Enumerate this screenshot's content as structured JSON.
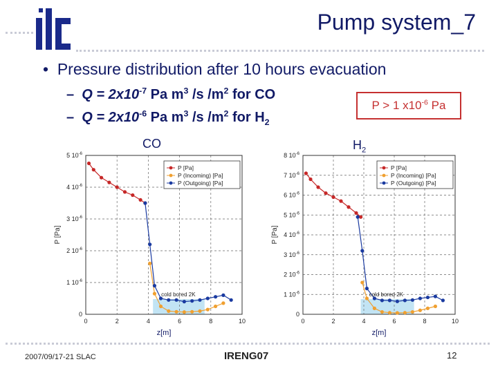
{
  "header": {
    "logo_text": "ilc",
    "title": "Pump system_7"
  },
  "bullet": {
    "text": "Pressure distribution after 10 hours evacuation"
  },
  "subbullets": [
    {
      "prefix": "Q = 2x10",
      "exp": "-7",
      "mid": " Pa m",
      "exp2": "3",
      "mid2": " /s /m",
      "exp3": "2",
      "suffix": " for CO",
      "gas_sub": ""
    },
    {
      "prefix": "Q = 2x10",
      "exp": "-6",
      "mid": " Pa m",
      "exp2": "3",
      "mid2": " /s /m",
      "exp3": "2",
      "suffix": " for H",
      "gas_sub": "2"
    }
  ],
  "callout": {
    "prefix": "P > 1 x10",
    "exp": "-6",
    "suffix": " Pa"
  },
  "colors": {
    "p_total": "#c62828",
    "p_incoming": "#f0a030",
    "p_outgoing": "#1a3aa0",
    "highlight": "#a8d8f0",
    "accent_red": "#c53030"
  },
  "chart_data": [
    {
      "type": "line",
      "title": "CO",
      "xlabel": "z[m]",
      "ylabel": "P [Pa]",
      "xlim": [
        0,
        10
      ],
      "ylim": [
        0,
        5e-06
      ],
      "x_ticks": [
        "0",
        "2",
        "4",
        "6",
        "8",
        "10"
      ],
      "y_ticks": [
        "0",
        "1 10-6",
        "2 10-6",
        "3 10-6",
        "4 10-6",
        "5 10-6"
      ],
      "legend": [
        "P [Pa]",
        "P (Incoming) [Pa]",
        "P (Outgoing) [Pa]"
      ],
      "legend_position": "top-right",
      "annotation": "cold bored",
      "annotation2": "2K",
      "highlight_x": [
        4.3,
        7.6
      ],
      "series": [
        {
          "name": "P [Pa]",
          "x": [
            0.2,
            0.5,
            1.0,
            1.5,
            2.0,
            2.5,
            3.0,
            3.5,
            3.8
          ],
          "y": [
            4.75e-06,
            4.55e-06,
            4.3e-06,
            4.15e-06,
            4e-06,
            3.85e-06,
            3.75e-06,
            3.6e-06,
            3.5e-06
          ]
        },
        {
          "name": "P (Incoming) [Pa]",
          "x": [
            4.1,
            4.4,
            4.8,
            5.3,
            5.8,
            6.3,
            6.8,
            7.3,
            7.8,
            8.3,
            8.8
          ],
          "y": [
            1.6e-06,
            6.5e-07,
            2.5e-07,
            1e-07,
            8e-08,
            7e-08,
            8e-08,
            1e-07,
            1.5e-07,
            2.5e-07,
            3.5e-07
          ]
        },
        {
          "name": "P (Outgoing) [Pa]",
          "x": [
            3.8,
            4.1,
            4.4,
            4.8,
            5.3,
            5.8,
            6.3,
            6.8,
            7.3,
            7.8,
            8.3,
            8.8,
            9.3
          ],
          "y": [
            3.5e-06,
            2.2e-06,
            9e-07,
            5e-07,
            4.5e-07,
            4.5e-07,
            4e-07,
            4.2e-07,
            4.5e-07,
            5e-07,
            5.5e-07,
            6e-07,
            4.5e-07
          ]
        }
      ]
    },
    {
      "type": "line",
      "title": "H2",
      "title_base": "H",
      "title_sub": "2",
      "xlabel": "z[m]",
      "ylabel": "P [Pa]",
      "xlim": [
        0,
        10
      ],
      "ylim": [
        0,
        8e-06
      ],
      "x_ticks": [
        "0",
        "2",
        "4",
        "6",
        "8",
        "10"
      ],
      "y_ticks": [
        "0",
        "1 10-6",
        "2 10-6",
        "3 10-6",
        "4 10-6",
        "5 10-6",
        "6 10-6",
        "7 10-6",
        "8 10-6"
      ],
      "legend": [
        "P [Pa]",
        "P (Incoming) [Pa]",
        "P (Outgoing) [Pa]"
      ],
      "legend_position": "top-right",
      "annotation": "cold bored",
      "annotation2": "2K",
      "highlight_x": [
        3.8,
        7.3
      ],
      "series": [
        {
          "name": "P [Pa]",
          "x": [
            0.2,
            0.5,
            1.0,
            1.5,
            2.0,
            2.5,
            3.0,
            3.5,
            3.8
          ],
          "y": [
            7.1e-06,
            6.8e-06,
            6.4e-06,
            6.1e-06,
            5.9e-06,
            5.7e-06,
            5.4e-06,
            5.1e-06,
            4.9e-06
          ]
        },
        {
          "name": "P (Incoming) [Pa]",
          "x": [
            3.9,
            4.2,
            4.7,
            5.2,
            5.7,
            6.2,
            6.7,
            7.2,
            7.7,
            8.2,
            8.7
          ],
          "y": [
            1.6e-06,
            8e-07,
            3e-07,
            1.2e-07,
            8e-08,
            7e-08,
            8e-08,
            1.2e-07,
            2e-07,
            3e-07,
            4e-07
          ]
        },
        {
          "name": "P (Outgoing) [Pa]",
          "x": [
            3.6,
            3.9,
            4.2,
            4.7,
            5.2,
            5.7,
            6.2,
            6.7,
            7.2,
            7.7,
            8.2,
            8.7,
            9.2
          ],
          "y": [
            4.9e-06,
            3.2e-06,
            1.3e-06,
            8e-07,
            7e-07,
            7e-07,
            6.5e-07,
            7e-07,
            7.2e-07,
            8e-07,
            8.5e-07,
            9e-07,
            7e-07
          ]
        }
      ]
    }
  ],
  "footer": {
    "left": "2007/09/17-21 SLAC",
    "center": "IRENG07",
    "page": "12"
  }
}
